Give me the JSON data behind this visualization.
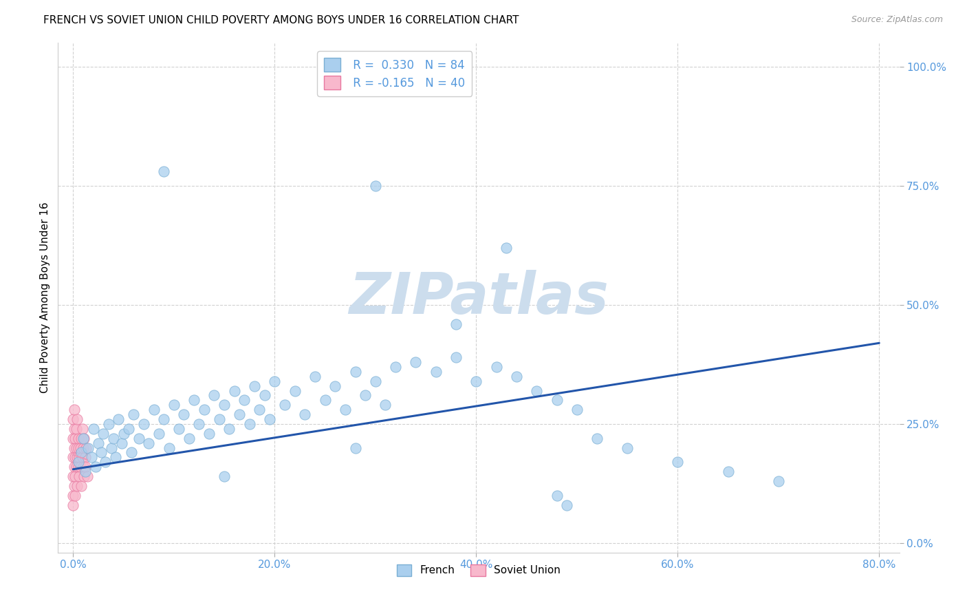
{
  "title": "FRENCH VS SOVIET UNION CHILD POVERTY AMONG BOYS UNDER 16 CORRELATION CHART",
  "source": "Source: ZipAtlas.com",
  "ylabel": "Child Poverty Among Boys Under 16",
  "french_R": 0.33,
  "french_N": 84,
  "soviet_R": -0.165,
  "soviet_N": 40,
  "french_color": "#aacfee",
  "french_edge": "#7aafd4",
  "soviet_color": "#f8b8cc",
  "soviet_edge": "#e878a0",
  "french_line_color": "#2255aa",
  "soviet_line_color": "#e899b8",
  "watermark_color": "#ccdded",
  "tick_color": "#5599dd",
  "grid_color": "#cccccc",
  "french_x": [
    0.005,
    0.008,
    0.01,
    0.012,
    0.015,
    0.018,
    0.02,
    0.022,
    0.025,
    0.028,
    0.03,
    0.032,
    0.035,
    0.038,
    0.04,
    0.042,
    0.045,
    0.048,
    0.05,
    0.055,
    0.058,
    0.06,
    0.065,
    0.07,
    0.075,
    0.08,
    0.085,
    0.09,
    0.095,
    0.1,
    0.105,
    0.11,
    0.115,
    0.12,
    0.125,
    0.13,
    0.135,
    0.14,
    0.145,
    0.15,
    0.155,
    0.16,
    0.165,
    0.17,
    0.175,
    0.18,
    0.185,
    0.19,
    0.195,
    0.2,
    0.21,
    0.22,
    0.23,
    0.24,
    0.25,
    0.26,
    0.27,
    0.28,
    0.29,
    0.3,
    0.31,
    0.32,
    0.34,
    0.36,
    0.38,
    0.4,
    0.42,
    0.44,
    0.46,
    0.48,
    0.5,
    0.52,
    0.55,
    0.6,
    0.65,
    0.7,
    0.3,
    0.38,
    0.43,
    0.48,
    0.49,
    0.28,
    0.15,
    0.09
  ],
  "french_y": [
    0.17,
    0.19,
    0.22,
    0.15,
    0.2,
    0.18,
    0.24,
    0.16,
    0.21,
    0.19,
    0.23,
    0.17,
    0.25,
    0.2,
    0.22,
    0.18,
    0.26,
    0.21,
    0.23,
    0.24,
    0.19,
    0.27,
    0.22,
    0.25,
    0.21,
    0.28,
    0.23,
    0.26,
    0.2,
    0.29,
    0.24,
    0.27,
    0.22,
    0.3,
    0.25,
    0.28,
    0.23,
    0.31,
    0.26,
    0.29,
    0.24,
    0.32,
    0.27,
    0.3,
    0.25,
    0.33,
    0.28,
    0.31,
    0.26,
    0.34,
    0.29,
    0.32,
    0.27,
    0.35,
    0.3,
    0.33,
    0.28,
    0.36,
    0.31,
    0.34,
    0.29,
    0.37,
    0.38,
    0.36,
    0.39,
    0.34,
    0.37,
    0.35,
    0.32,
    0.3,
    0.28,
    0.22,
    0.2,
    0.17,
    0.15,
    0.13,
    0.75,
    0.46,
    0.62,
    0.1,
    0.08,
    0.2,
    0.14,
    0.78
  ],
  "soviet_x": [
    0.0,
    0.0,
    0.0,
    0.0,
    0.0,
    0.0,
    0.001,
    0.001,
    0.001,
    0.001,
    0.001,
    0.002,
    0.002,
    0.002,
    0.002,
    0.003,
    0.003,
    0.003,
    0.004,
    0.004,
    0.004,
    0.005,
    0.005,
    0.005,
    0.006,
    0.006,
    0.007,
    0.007,
    0.008,
    0.008,
    0.009,
    0.009,
    0.01,
    0.01,
    0.011,
    0.011,
    0.012,
    0.012,
    0.013,
    0.014
  ],
  "soviet_y": [
    0.18,
    0.14,
    0.22,
    0.1,
    0.26,
    0.08,
    0.2,
    0.16,
    0.24,
    0.12,
    0.28,
    0.18,
    0.14,
    0.22,
    0.1,
    0.2,
    0.16,
    0.24,
    0.18,
    0.12,
    0.26,
    0.2,
    0.16,
    0.22,
    0.18,
    0.14,
    0.2,
    0.16,
    0.22,
    0.12,
    0.18,
    0.24,
    0.16,
    0.2,
    0.14,
    0.22,
    0.18,
    0.16,
    0.2,
    0.14
  ],
  "xlim": [
    -0.015,
    0.82
  ],
  "ylim": [
    -0.02,
    1.05
  ],
  "xticks": [
    0.0,
    0.2,
    0.4,
    0.6,
    0.8
  ],
  "yticks": [
    0.0,
    0.25,
    0.5,
    0.75,
    1.0
  ],
  "xtick_labels": [
    "0.0%",
    "20.0%",
    "40.0%",
    "60.0%",
    "80.0%"
  ],
  "ytick_labels": [
    "0.0%",
    "25.0%",
    "50.0%",
    "75.0%",
    "100.0%"
  ],
  "marker_size": 120,
  "marker_alpha": 0.75,
  "french_line_y0": 0.155,
  "french_line_y1": 0.42,
  "soviet_line_visible": true
}
